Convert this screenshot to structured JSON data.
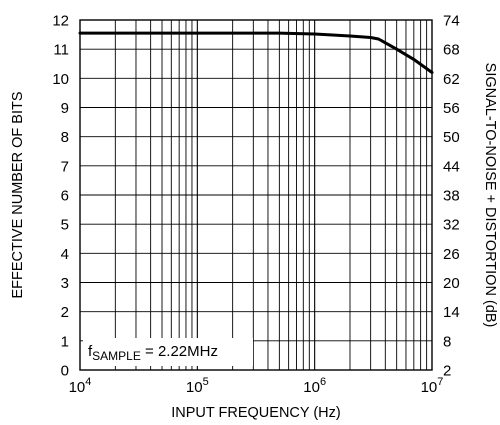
{
  "chart_data": {
    "type": "line",
    "xlabel": "INPUT FREQUENCY (Hz)",
    "ylabel": "EFFECTIVE NUMBER OF BITS",
    "y2label": "SIGNAL-TO-NOISE + DISTORTION (dB)",
    "x_scale": "log",
    "xlim": [
      10000,
      10000000
    ],
    "ylim": [
      0,
      12
    ],
    "y2lim": [
      2,
      74
    ],
    "x_ticks": [
      {
        "value": 10000,
        "base": "10",
        "exp": "4"
      },
      {
        "value": 100000,
        "base": "10",
        "exp": "5"
      },
      {
        "value": 1000000,
        "base": "10",
        "exp": "6"
      },
      {
        "value": 10000000,
        "base": "10",
        "exp": "7"
      }
    ],
    "y_ticks": [
      0,
      1,
      2,
      3,
      4,
      5,
      6,
      7,
      8,
      9,
      10,
      11,
      12
    ],
    "y2_ticks": [
      2,
      8,
      14,
      20,
      26,
      32,
      38,
      44,
      50,
      56,
      62,
      68,
      74
    ],
    "grid": true,
    "annotation": {
      "prefix": "f",
      "subscript": "SAMPLE",
      "suffix": " = 2.22MHz"
    },
    "series": [
      {
        "x": [
          10000,
          100000,
          500000,
          1000000,
          2000000,
          3000000,
          3500000,
          5000000,
          7000000,
          10000000
        ],
        "y": [
          11.55,
          11.55,
          11.55,
          11.52,
          11.45,
          11.4,
          11.35,
          11.0,
          10.65,
          10.2
        ]
      }
    ]
  }
}
